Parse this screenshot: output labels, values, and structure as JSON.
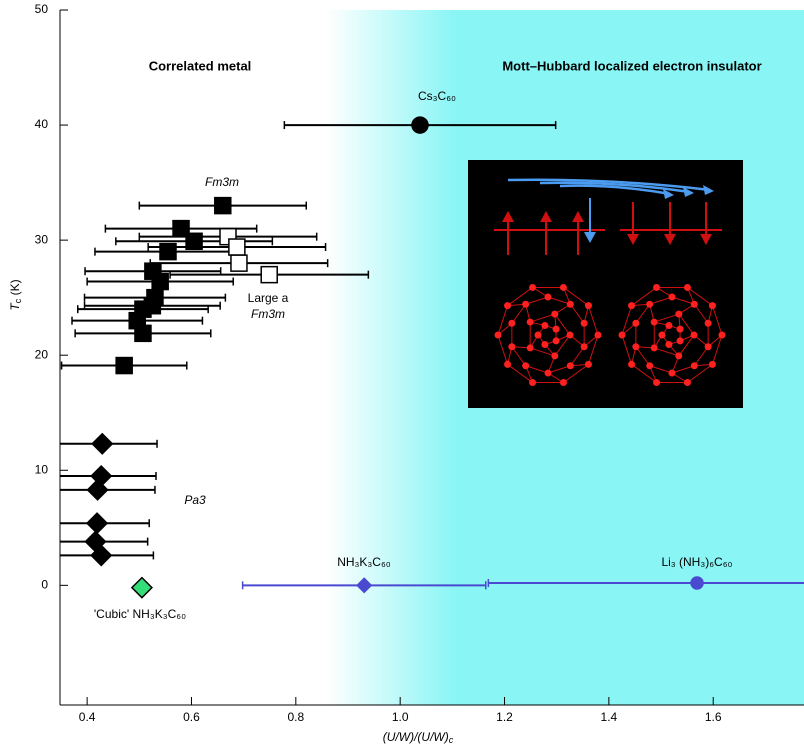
{
  "chart_data": {
    "type": "scatter",
    "xlim": [
      0.348,
      1.774
    ],
    "ylim": [
      -10.4,
      50
    ],
    "xticks": [
      0.4,
      0.6,
      0.8,
      {
        "value": 1,
        "label": "1.0"
      },
      1.2,
      1.4,
      1.6
    ],
    "yticks": [
      0,
      10,
      20,
      30,
      40,
      50
    ],
    "x_label": [
      {
        "text": "(U/W)/(U/W)"
      },
      {
        "text": "c",
        "sub": true
      }
    ],
    "y_label": [
      {
        "text": "T",
        "italic": true
      },
      {
        "text": "c",
        "sub": true
      },
      {
        "text": " (K)"
      }
    ],
    "region_labels": [
      "Correlated metal",
      "Mott–Hubbard localized electron insulator"
    ],
    "shade_color": "#8af5f5",
    "shaded_regions": [
      {
        "from": 0.858,
        "to": 1.105,
        "fill": "gradient"
      },
      {
        "from": 1.105,
        "to": 1.774,
        "fill": "solid"
      }
    ],
    "annotations": [
      {
        "text": "Fm3m",
        "italic": true
      },
      {
        "text": "Large a"
      },
      {
        "text": "Fm3m",
        "italic": true
      },
      {
        "text": "Pa3",
        "italic": true
      },
      {
        "text": "'Cubic' NH₃K₃C₆₀"
      },
      {
        "text": "NH₃K₃C₆₀",
        "color": "#4a4ad0"
      },
      {
        "text": "Li₃ (NH₃)₆C₆₀",
        "color": "#4a4ad0"
      },
      {
        "text": "Cs₃C₆₀"
      }
    ],
    "series": [
      {
        "marker": "square",
        "color": "#000000",
        "fill": "#000000",
        "x": [
          0.66,
          0.58,
          0.605,
          0.555,
          0.526,
          0.54,
          0.53,
          0.525,
          0.507,
          0.496,
          0.507,
          0.471
        ],
        "values": [
          33,
          31,
          29.9,
          29,
          27.3,
          26.4,
          25,
          24.3,
          24,
          23,
          21.9,
          19.1
        ],
        "xerr": [
          0.16,
          0.145,
          0.15,
          0.14,
          0.13,
          0.14,
          0.135,
          0.13,
          0.125,
          0.125,
          0.13,
          0.12
        ]
      },
      {
        "marker": "square",
        "color": "#000000",
        "fill": "#ffffff",
        "x": [
          0.67,
          0.687,
          0.691,
          0.749
        ],
        "values": [
          30.3,
          29.4,
          28,
          27
        ],
        "xerr": [
          0.17,
          0.17,
          0.17,
          0.19
        ]
      },
      {
        "marker": "diamond",
        "color": "#000000",
        "fill": "#000000",
        "x": [
          0.429,
          0.427,
          0.42,
          0.419,
          0.416,
          0.427
        ],
        "values": [
          12.3,
          9.5,
          8.3,
          5.4,
          3.8,
          2.6
        ],
        "xerr": [
          0.105,
          0.105,
          0.11,
          0.1,
          0.1,
          0.1
        ]
      },
      {
        "marker": "diamond",
        "color": "#000000",
        "fill": "#33dd77",
        "x": [
          0.505
        ],
        "values": [
          -0.2
        ]
      },
      {
        "marker": "diamond",
        "color": "#4a4ad0",
        "fill": "#4a4ad0",
        "x": [
          0.931
        ],
        "values": [
          0
        ],
        "xerr": [
          0.233
        ]
      },
      {
        "marker": "circle",
        "color": "#4a4ad0",
        "fill": "#4a4ad0",
        "x": [
          1.569
        ],
        "values": [
          0.2
        ],
        "xerr": [
          0.4
        ]
      },
      {
        "marker": "circle",
        "color": "#000000",
        "fill": "#000000",
        "x": [
          1.038
        ],
        "values": [
          40
        ],
        "xerr": [
          0.26
        ]
      }
    ]
  }
}
